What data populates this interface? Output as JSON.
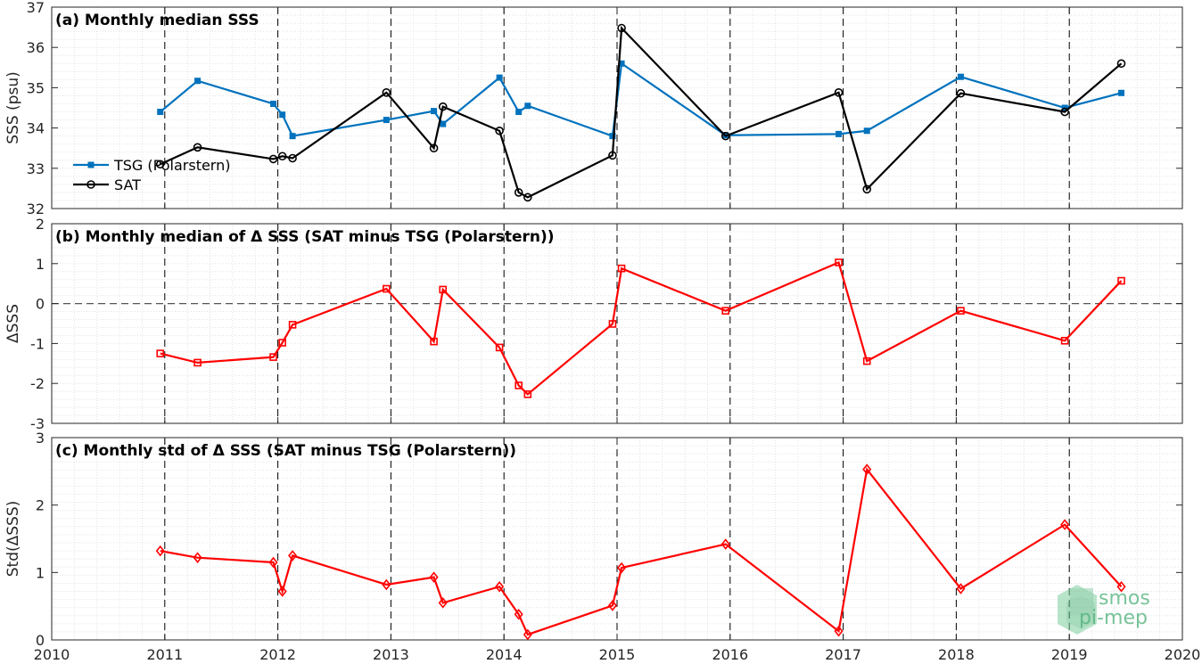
{
  "chart_data": [
    {
      "type": "line",
      "title": "(a) Monthly median SSS",
      "ylabel": "SSS (psu)",
      "xlim": [
        2010,
        2020
      ],
      "ylim": [
        32,
        37
      ],
      "yticks": [
        32,
        33,
        34,
        35,
        36,
        37
      ],
      "grid": true,
      "legend_position": "bottom-left",
      "series": [
        {
          "name": "TSG (Polarstern)",
          "color": "#0072bd",
          "marker": "asterisk",
          "x": [
            2010.96,
            2011.29,
            2011.96,
            2012.04,
            2012.13,
            2012.96,
            2013.38,
            2013.46,
            2013.96,
            2014.13,
            2014.21,
            2014.96,
            2015.04,
            2015.96,
            2016.96,
            2017.21,
            2018.04,
            2018.96,
            2019.46
          ],
          "y": [
            34.4,
            35.17,
            34.6,
            34.33,
            33.8,
            34.2,
            34.42,
            34.1,
            35.25,
            34.4,
            34.55,
            33.8,
            35.6,
            33.82,
            33.85,
            33.93,
            35.27,
            34.5,
            34.87
          ]
        },
        {
          "name": "SAT",
          "color": "#000000",
          "marker": "circle",
          "x": [
            2010.96,
            2011.29,
            2011.96,
            2012.04,
            2012.13,
            2012.96,
            2013.38,
            2013.46,
            2013.96,
            2014.13,
            2014.21,
            2014.96,
            2015.04,
            2015.96,
            2016.96,
            2017.21,
            2018.04,
            2018.96,
            2019.46
          ],
          "y": [
            33.1,
            33.52,
            33.23,
            33.3,
            33.25,
            34.88,
            33.5,
            34.53,
            33.93,
            32.4,
            32.28,
            33.32,
            36.48,
            33.8,
            34.88,
            32.48,
            34.86,
            34.4,
            35.6
          ]
        }
      ]
    },
    {
      "type": "line",
      "title": "(b) Monthly median of Δ SSS (SAT minus TSG (Polarstern))",
      "ylabel": "ΔSSS",
      "xlim": [
        2010,
        2020
      ],
      "ylim": [
        -3,
        2
      ],
      "yticks": [
        -3,
        -2,
        -1,
        0,
        1,
        2
      ],
      "grid": true,
      "zero_line": true,
      "series": [
        {
          "color": "#ff0000",
          "marker": "square",
          "x": [
            2010.96,
            2011.29,
            2011.96,
            2012.04,
            2012.13,
            2012.96,
            2013.38,
            2013.46,
            2013.96,
            2014.13,
            2014.21,
            2014.96,
            2015.04,
            2015.96,
            2016.96,
            2017.21,
            2018.04,
            2018.96,
            2019.46
          ],
          "y": [
            -1.25,
            -1.48,
            -1.34,
            -0.98,
            -0.53,
            0.37,
            -0.95,
            0.35,
            -1.1,
            -2.05,
            -2.27,
            -0.51,
            0.88,
            -0.18,
            1.03,
            -1.44,
            -0.18,
            -0.93,
            0.57
          ]
        }
      ]
    },
    {
      "type": "line",
      "title": "(c) Monthly std of Δ SSS (SAT minus TSG (Polarstern))",
      "ylabel": "Std(ΔSSS)",
      "xlim": [
        2010,
        2020
      ],
      "ylim": [
        0,
        3
      ],
      "yticks": [
        0,
        1,
        2,
        3
      ],
      "xticks": [
        2010,
        2011,
        2012,
        2013,
        2014,
        2015,
        2016,
        2017,
        2018,
        2019,
        2020
      ],
      "grid": true,
      "series": [
        {
          "color": "#ff0000",
          "marker": "diamond",
          "x": [
            2010.96,
            2011.29,
            2011.96,
            2012.04,
            2012.13,
            2012.96,
            2013.38,
            2013.46,
            2013.96,
            2014.13,
            2014.21,
            2014.96,
            2015.04,
            2015.96,
            2016.96,
            2017.21,
            2018.04,
            2018.96,
            2019.46
          ],
          "y": [
            1.32,
            1.22,
            1.15,
            0.72,
            1.25,
            0.82,
            0.93,
            0.55,
            0.79,
            0.38,
            0.08,
            0.51,
            1.07,
            1.42,
            0.13,
            2.53,
            0.76,
            1.71,
            0.79
          ]
        }
      ]
    }
  ],
  "year_dividers": [
    2011,
    2012,
    2013,
    2014,
    2015,
    2016,
    2017,
    2018,
    2019
  ],
  "logo": {
    "line1": "smos",
    "line2": "pi-mep",
    "color": "#4caf78"
  }
}
